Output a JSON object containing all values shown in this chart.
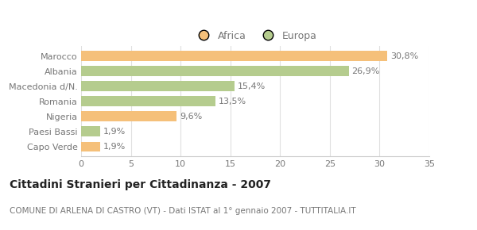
{
  "categories": [
    "Capo Verde",
    "Paesi Bassi",
    "Nigeria",
    "Romania",
    "Macedonia d/N.",
    "Albania",
    "Marocco"
  ],
  "values": [
    1.9,
    1.9,
    9.6,
    13.5,
    15.4,
    26.9,
    30.8
  ],
  "colors": [
    "#f5c07a",
    "#b5cc8e",
    "#f5c07a",
    "#b5cc8e",
    "#b5cc8e",
    "#b5cc8e",
    "#f5c07a"
  ],
  "labels": [
    "1,9%",
    "1,9%",
    "9,6%",
    "13,5%",
    "15,4%",
    "26,9%",
    "30,8%"
  ],
  "legend_labels": [
    "Africa",
    "Europa"
  ],
  "legend_colors": [
    "#f5c07a",
    "#b5cc8e"
  ],
  "title": "Cittadini Stranieri per Cittadinanza - 2007",
  "subtitle": "COMUNE DI ARLENA DI CASTRO (VT) - Dati ISTAT al 1° gennaio 2007 - TUTTITALIA.IT",
  "xlim": [
    0,
    35
  ],
  "xticks": [
    0,
    5,
    10,
    15,
    20,
    25,
    30,
    35
  ],
  "background_color": "#ffffff",
  "bar_height": 0.65,
  "title_fontsize": 10,
  "subtitle_fontsize": 7.5,
  "label_fontsize": 8,
  "tick_fontsize": 8,
  "legend_fontsize": 9,
  "text_color": "#777777",
  "title_color": "#222222"
}
